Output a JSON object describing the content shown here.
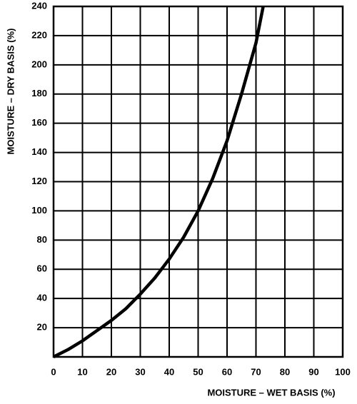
{
  "chart_data": {
    "type": "line",
    "x_label": "MOISTURE – WET BASIS (%)",
    "y_label": "MOISTURE – DRY BASIS (%)",
    "x": [
      0,
      5,
      10,
      15,
      20,
      25,
      30,
      35,
      40,
      45,
      50,
      55,
      60,
      65,
      70,
      72.5
    ],
    "series": [
      {
        "name": "dry basis",
        "color": "#000000",
        "values": [
          0,
          5,
          11,
          18,
          25,
          33,
          43,
          54,
          67,
          82,
          100,
          122,
          148,
          180,
          215,
          240
        ]
      }
    ],
    "xlim": [
      0,
      100
    ],
    "xticks": [
      0,
      10,
      20,
      30,
      40,
      50,
      60,
      70,
      80,
      90,
      100
    ],
    "ylim": [
      0,
      240
    ],
    "yticks": [
      20,
      40,
      60,
      80,
      100,
      120,
      140,
      160,
      180,
      200,
      220,
      240
    ],
    "grid": true
  }
}
